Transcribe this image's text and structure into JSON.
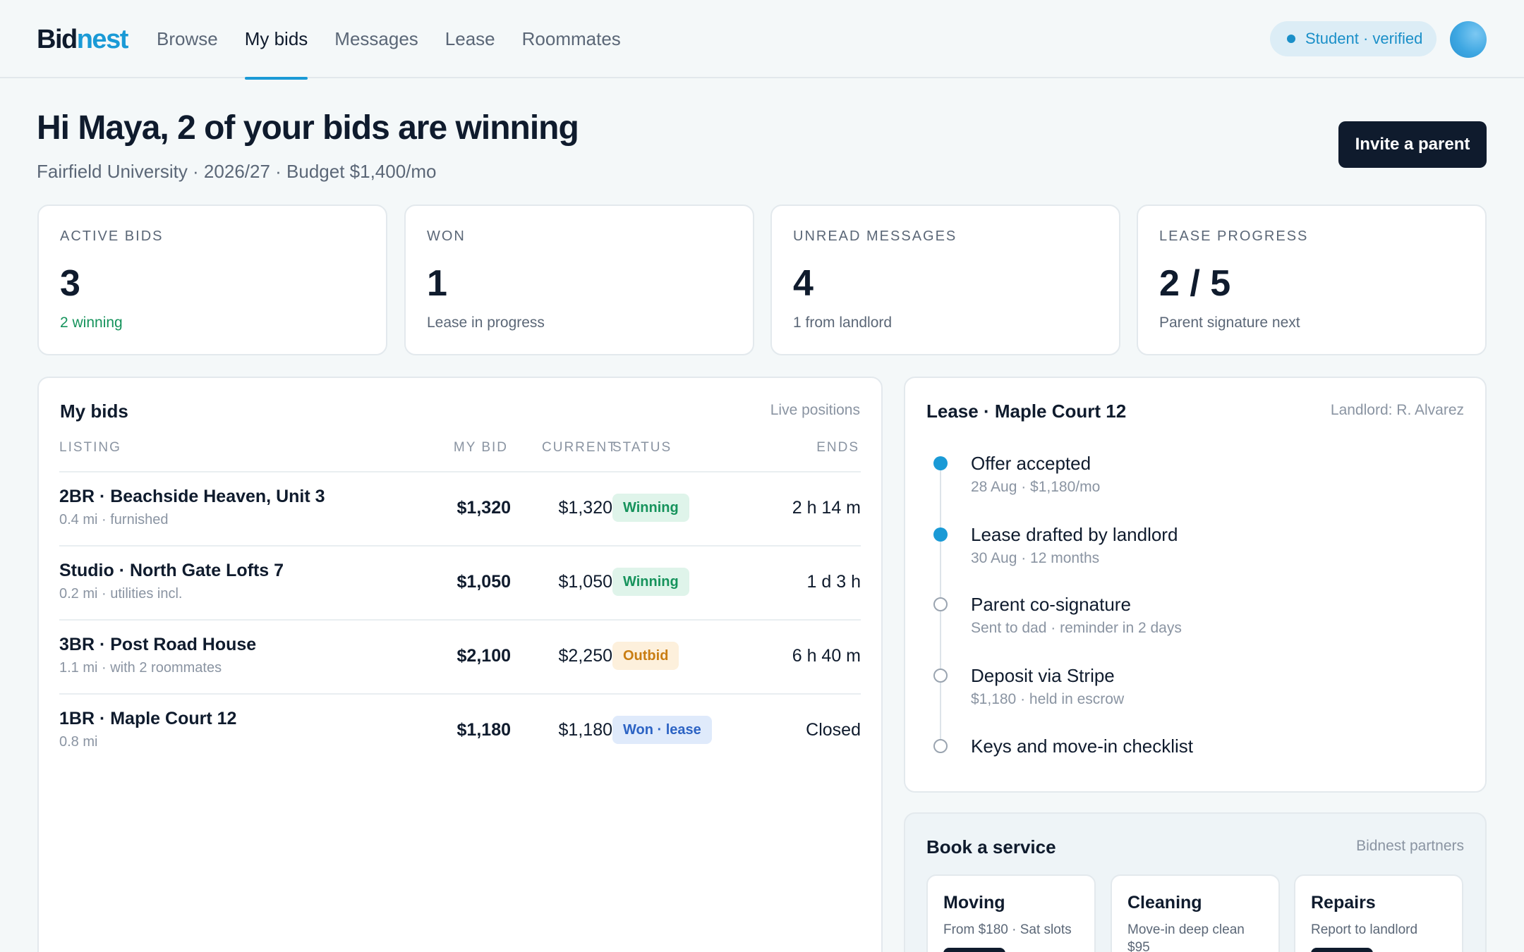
{
  "brand": {
    "part1": "Bid",
    "part2": "nest"
  },
  "nav": [
    {
      "label": "Browse",
      "active": false
    },
    {
      "label": "My bids",
      "active": true
    },
    {
      "label": "Messages",
      "active": false
    },
    {
      "label": "Lease",
      "active": false
    },
    {
      "label": "Roommates",
      "active": false
    }
  ],
  "status_pill": "Student · verified",
  "header": {
    "greeting": "Hi Maya, 2 of your bids are winning",
    "subline": "Fairfield University · 2026/27 · Budget $1,400/mo",
    "invite_label": "Invite a parent"
  },
  "stats": [
    {
      "label": "ACTIVE BIDS",
      "value": "3",
      "note": "2 winning"
    },
    {
      "label": "WON",
      "value": "1",
      "note": "Lease in progress"
    },
    {
      "label": "UNREAD MESSAGES",
      "value": "4",
      "note": "1 from landlord"
    },
    {
      "label": "LEASE PROGRESS",
      "value": "2 / 5",
      "note": "Parent signature next"
    }
  ],
  "bids": {
    "title": "My bids",
    "aside": "Live positions",
    "columns": {
      "listing": "LISTING",
      "mybid": "MY BID",
      "current": "CURRENT",
      "status": "STATUS",
      "ends": "ENDS"
    },
    "rows": [
      {
        "name": "2BR · Beachside Heaven, Unit 3",
        "meta": "0.4 mi · furnished",
        "mybid": "$1,320",
        "current": "$1,320",
        "status": "Winning",
        "ends": "2 h 14 m"
      },
      {
        "name": "Studio · North Gate Lofts 7",
        "meta": "0.2 mi · utilities incl.",
        "mybid": "$1,050",
        "current": "$1,050",
        "status": "Winning",
        "ends": "1 d 3 h"
      },
      {
        "name": "3BR · Post Road House",
        "meta": "1.1 mi · with 2 roommates",
        "mybid": "$2,100",
        "current": "$2,250",
        "status": "Outbid",
        "ends": "6 h 40 m"
      },
      {
        "name": "1BR · Maple Court 12",
        "meta": "0.8 mi",
        "mybid": "$1,180",
        "current": "$1,180",
        "status": "Won · lease",
        "ends": "Closed"
      }
    ]
  },
  "lease": {
    "title": "Lease · Maple Court 12",
    "aside": "Landlord: R. Alvarez",
    "steps": [
      {
        "title": "Offer accepted",
        "sub": "28 Aug · $1,180/mo",
        "done": true
      },
      {
        "title": "Lease drafted by landlord",
        "sub": "30 Aug · 12 months",
        "done": true
      },
      {
        "title": "Parent co-signature",
        "sub": "Sent to dad · reminder in 2 days",
        "done": false
      },
      {
        "title": "Deposit via Stripe",
        "sub": "$1,180 · held in escrow",
        "done": false
      },
      {
        "title": "Keys and move-in checklist",
        "sub": "",
        "done": false
      }
    ]
  },
  "services": {
    "title": "Book a service",
    "aside": "Bidnest partners",
    "items": [
      {
        "title": "Moving",
        "sub": "From $180 · Sat slots"
      },
      {
        "title": "Cleaning",
        "sub": "Move-in deep clean $95"
      },
      {
        "title": "Repairs",
        "sub": "Report to landlord"
      }
    ]
  },
  "colors": {
    "accent": "#1a9ad6",
    "ink": "#0f1b2d",
    "winning": "#16935c",
    "outbid": "#c97d12",
    "won": "#2c63c4"
  }
}
